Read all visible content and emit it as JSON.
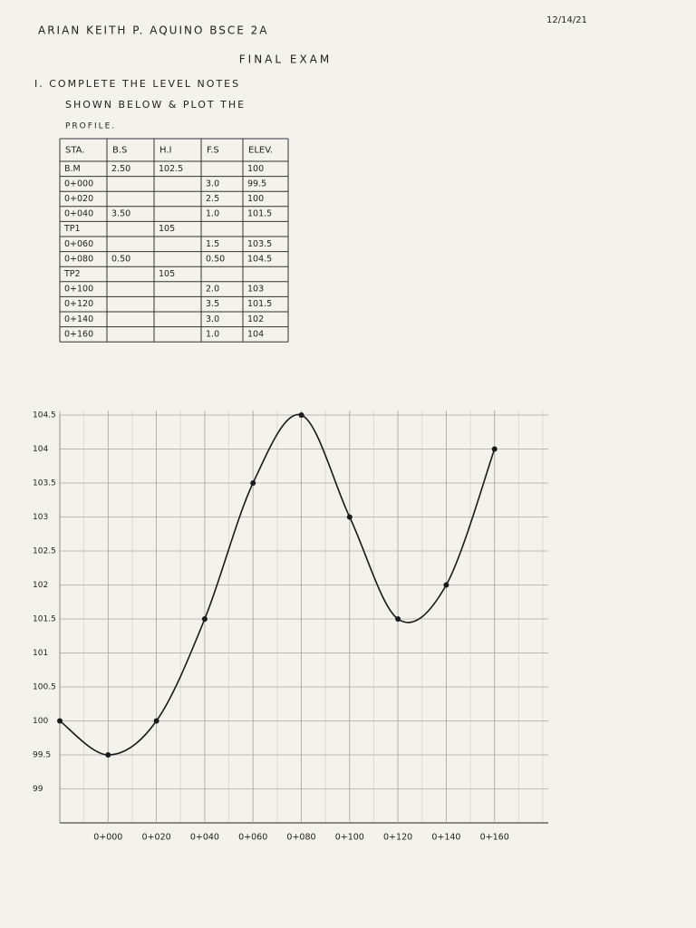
{
  "header": {
    "name": "ARIAN KEITH P. AQUINO BSCE 2A",
    "date": "12/14/21",
    "title": "FINAL EXAM"
  },
  "instruction": [
    "I. COMPLETE THE LEVEL NOTES",
    "SHOWN BELOW & PLOT THE",
    "PROFILE."
  ],
  "table": {
    "columns": [
      "STA.",
      "B.S",
      "H.I",
      "F.S",
      "ELEV."
    ],
    "rows": [
      [
        "B.M",
        "2.50",
        "102.5",
        null,
        "100"
      ],
      [
        "0+000",
        null,
        null,
        "3.0",
        "99.5"
      ],
      [
        "0+020",
        null,
        null,
        "2.5",
        "100"
      ],
      [
        "0+040",
        "3.50",
        null,
        "1.0",
        "101.5"
      ],
      [
        "TP1",
        null,
        "105",
        null,
        null
      ],
      [
        "0+060",
        null,
        null,
        "1.5",
        "103.5"
      ],
      [
        "0+080",
        "0.50",
        null,
        "0.50",
        "104.5"
      ],
      [
        "TP2",
        null,
        "105",
        null,
        null
      ],
      [
        "0+100",
        null,
        null,
        "2.0",
        "103"
      ],
      [
        "0+120",
        null,
        null,
        "3.5",
        "101.5"
      ],
      [
        "0+140",
        null,
        null,
        "3.0",
        "102"
      ],
      [
        "0+160",
        null,
        null,
        "1.0",
        "104"
      ]
    ]
  },
  "chart_data": {
    "type": "line",
    "categories": [
      null,
      "0+000",
      "0+020",
      "0+040",
      "0+060",
      "0+080",
      "0+100",
      "0+120",
      "0+140",
      "0+160"
    ],
    "values": [
      100,
      99.5,
      100,
      101.5,
      103.5,
      104.5,
      103,
      101.5,
      102,
      104
    ],
    "color": "#1a1a1a",
    "ylim": [
      98.5,
      104.5
    ],
    "yticks": [
      99,
      99.5,
      100,
      100.5,
      101,
      101.5,
      102,
      102.5,
      103,
      103.5,
      104,
      104.5
    ],
    "grid": true
  }
}
